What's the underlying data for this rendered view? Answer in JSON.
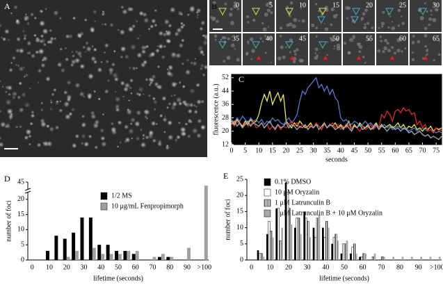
{
  "panels": {
    "A": {
      "label": "A"
    },
    "B": {
      "label": "B",
      "frames": [
        "0",
        "5",
        "10",
        "15",
        "20",
        "25",
        "30",
        "35",
        "40",
        "45",
        "50",
        "55",
        "60",
        "65"
      ]
    }
  },
  "chart_data": [
    {
      "type": "line",
      "panel_label": "C",
      "xlabel": "seconds",
      "ylabel": "fluorescence (a.u.)",
      "background": "#000000",
      "x": [
        0,
        1,
        2,
        3,
        4,
        5,
        6,
        7,
        8,
        9,
        10,
        11,
        12,
        13,
        14,
        15,
        16,
        17,
        18,
        19,
        20,
        21,
        22,
        23,
        24,
        25,
        26,
        27,
        28,
        29,
        30,
        31,
        32,
        33,
        34,
        35,
        36,
        37,
        38,
        39,
        40,
        41,
        42,
        43,
        44,
        45,
        46,
        47,
        48,
        49,
        50,
        51,
        52,
        53,
        54,
        55,
        56,
        57,
        58,
        59,
        60,
        61,
        62,
        63,
        64,
        65,
        66,
        67,
        68,
        69,
        70,
        71,
        72,
        73,
        74,
        75,
        76,
        77
      ],
      "xlim": [
        0,
        77
      ],
      "xticks": [
        0,
        5,
        10,
        15,
        20,
        25,
        30,
        35,
        40,
        45,
        50,
        55,
        60,
        65,
        70,
        75
      ],
      "ylim": [
        12,
        54
      ],
      "yticks": [
        12,
        20,
        28,
        36,
        44,
        52
      ],
      "series": [
        {
          "color": "#f0f040",
          "values": [
            26,
            24,
            27,
            25,
            23,
            26,
            24,
            27,
            25,
            26,
            30,
            37,
            42,
            38,
            44,
            36,
            40,
            43,
            38,
            42,
            26,
            24,
            22,
            25,
            23,
            26,
            24,
            22,
            23,
            25,
            22,
            24,
            23,
            21,
            25,
            22,
            24,
            23,
            25,
            22,
            24,
            22,
            23,
            26,
            21,
            24,
            22,
            25,
            23,
            22,
            24,
            21,
            23,
            25,
            22,
            24,
            22,
            23,
            24,
            22,
            23,
            25,
            22,
            24,
            21,
            23,
            22,
            24,
            21,
            22,
            20,
            22,
            21,
            23,
            20,
            22,
            21,
            22
          ]
        },
        {
          "color": "#5a78d0",
          "values": [
            27,
            25,
            28,
            26,
            29,
            27,
            25,
            28,
            26,
            27,
            25,
            27,
            24,
            26,
            25,
            28,
            26,
            27,
            25,
            24,
            26,
            28,
            25,
            27,
            30,
            38,
            44,
            42,
            46,
            48,
            50,
            52,
            46,
            48,
            44,
            47,
            42,
            45,
            40,
            38,
            28,
            26,
            27,
            25,
            24,
            26,
            25,
            23,
            24,
            26,
            24,
            25,
            23,
            24,
            22,
            23,
            24,
            22,
            23,
            21,
            22,
            23,
            22,
            21,
            22,
            20,
            21,
            22,
            20,
            21,
            22,
            21,
            20,
            21,
            20,
            19,
            20,
            19
          ]
        },
        {
          "color": "#e02828",
          "values": [
            25,
            23,
            26,
            24,
            22,
            25,
            23,
            24,
            26,
            22,
            23,
            25,
            22,
            24,
            21,
            23,
            22,
            24,
            21,
            23,
            22,
            24,
            26,
            23,
            25,
            22,
            24,
            23,
            21,
            24,
            22,
            25,
            23,
            21,
            24,
            22,
            23,
            25,
            22,
            24,
            21,
            23,
            22,
            24,
            21,
            23,
            22,
            20,
            23,
            21,
            22,
            24,
            21,
            23,
            22,
            30,
            28,
            32,
            30,
            26,
            32,
            33,
            31,
            34,
            32,
            33,
            30,
            31,
            24,
            26,
            22,
            24,
            20,
            21,
            19,
            22,
            20,
            21
          ]
        },
        {
          "color": "#9ab0c0",
          "values": [
            24,
            26,
            23,
            25,
            22,
            24,
            26,
            23,
            25,
            24,
            23,
            25,
            22,
            24,
            26,
            23,
            21,
            24,
            22,
            23,
            25,
            22,
            24,
            23,
            21,
            23,
            22,
            24,
            21,
            23,
            22,
            24,
            21,
            23,
            25,
            22,
            24,
            23,
            21,
            22,
            23,
            21,
            24,
            22,
            20,
            23,
            22,
            24,
            21,
            22,
            23,
            21,
            22,
            24,
            21,
            23,
            22,
            20,
            22,
            23,
            21,
            22,
            20,
            22,
            21,
            19,
            20,
            18,
            19,
            20,
            18,
            17,
            18,
            16,
            17,
            16,
            15,
            17
          ]
        }
      ]
    },
    {
      "type": "bar",
      "panel_label": "D",
      "xlabel": "lifetime (seconds)",
      "ylabel": "number of foci",
      "categories": [
        "0",
        null,
        "10",
        null,
        "20",
        null,
        "30",
        null,
        "40",
        null,
        "50",
        null,
        "60",
        null,
        "70",
        null,
        "80",
        null,
        "90",
        null,
        ">100"
      ],
      "ylim": [
        0,
        45
      ],
      "yticks": [
        0,
        5,
        10,
        15,
        20,
        45
      ],
      "axis_break": [
        22,
        43
      ],
      "series": [
        {
          "name": "1/2 MS",
          "color": "#000000",
          "values": [
            0,
            0,
            3,
            8,
            7,
            9,
            14,
            14,
            5,
            5,
            3,
            3,
            2,
            0,
            0,
            1,
            1,
            0,
            0,
            0,
            0
          ]
        },
        {
          "name": "10 μg/mL Fenpropimorph",
          "color": "#a0a0a0",
          "values": [
            0,
            0,
            0,
            0,
            1,
            3,
            0,
            4,
            2,
            2,
            2,
            3,
            3,
            0,
            1,
            2,
            1,
            0,
            4,
            0,
            44
          ]
        }
      ]
    },
    {
      "type": "bar",
      "panel_label": "E",
      "xlabel": "lifetime (seconds)",
      "ylabel": "number of foci",
      "categories": [
        "0",
        null,
        "10",
        null,
        "20",
        null,
        "30",
        null,
        "40",
        null,
        "50",
        null,
        "60",
        null,
        "70",
        null,
        "80",
        null,
        "90",
        null,
        ">100"
      ],
      "ylim": [
        0,
        25
      ],
      "yticks": [
        0,
        5,
        10,
        15,
        20,
        25
      ],
      "series": [
        {
          "name": "0.1% DMSO",
          "color": "#000000",
          "values": [
            0,
            3,
            8,
            16,
            24,
            10,
            15,
            10,
            10,
            5,
            2,
            2,
            1,
            0,
            0,
            0,
            0,
            0,
            0,
            0,
            0
          ]
        },
        {
          "name": "10 μM Oryzalin",
          "color": "#ffffff",
          "values": [
            0,
            2,
            12,
            16,
            21,
            13,
            13,
            7,
            7,
            7,
            5,
            4,
            1,
            0,
            0,
            0,
            0,
            0,
            0,
            0,
            0
          ]
        },
        {
          "name": "1 μM Latrunculin B",
          "color": "#808080",
          "hatch": true,
          "values": [
            0,
            2,
            9,
            6,
            16,
            13,
            12,
            13,
            12,
            8,
            5,
            5,
            2,
            1,
            1,
            0,
            0,
            0,
            0,
            0,
            0
          ]
        },
        {
          "name": "1 μM Latrunculin B + 10 μM Oryzalin",
          "color": "#a8a8a8",
          "values": [
            0,
            1,
            7,
            10,
            11,
            8,
            7,
            14,
            10,
            6,
            6,
            2,
            2,
            2,
            1,
            1,
            1,
            1,
            1,
            1,
            1
          ]
        }
      ]
    }
  ]
}
